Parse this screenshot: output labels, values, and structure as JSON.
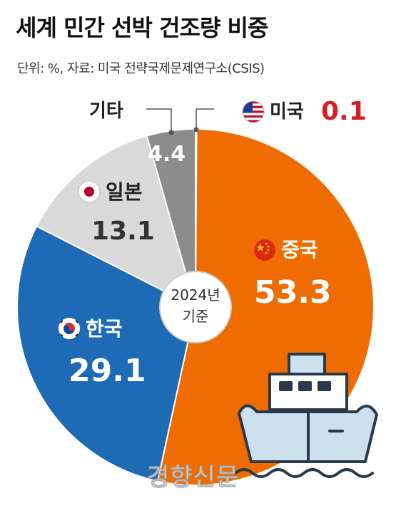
{
  "title": "세계 민간 선박 건조량 비중",
  "source": "단위: %, 자료: 미국 전략국제문제연구소(CSIS)",
  "center_label_line1": "2024년",
  "center_label_line2": "기준",
  "watermark": "경향신문",
  "colors": {
    "china": "#ef6c00",
    "korea": "#1f6ab5",
    "japan": "#d9d9d9",
    "other": "#8c8c8c",
    "usa": "#d32027",
    "ship_body": "#cde0ee",
    "ship_outline": "#2b3a4a"
  },
  "chart_data": {
    "type": "pie",
    "title": "세계 민간 선박 건조량 비중",
    "unit": "%",
    "categories": [
      "미국",
      "중국",
      "한국",
      "일본",
      "기타"
    ],
    "values": [
      0.1,
      53.3,
      29.1,
      13.1,
      4.4
    ],
    "value_labels": [
      "0.1",
      "53.3",
      "29.1",
      "13.1",
      "4.4"
    ],
    "flag_icons": [
      "us-flag-icon",
      "china-flag-icon",
      "korea-flag-icon",
      "japan-flag-icon",
      ""
    ]
  }
}
